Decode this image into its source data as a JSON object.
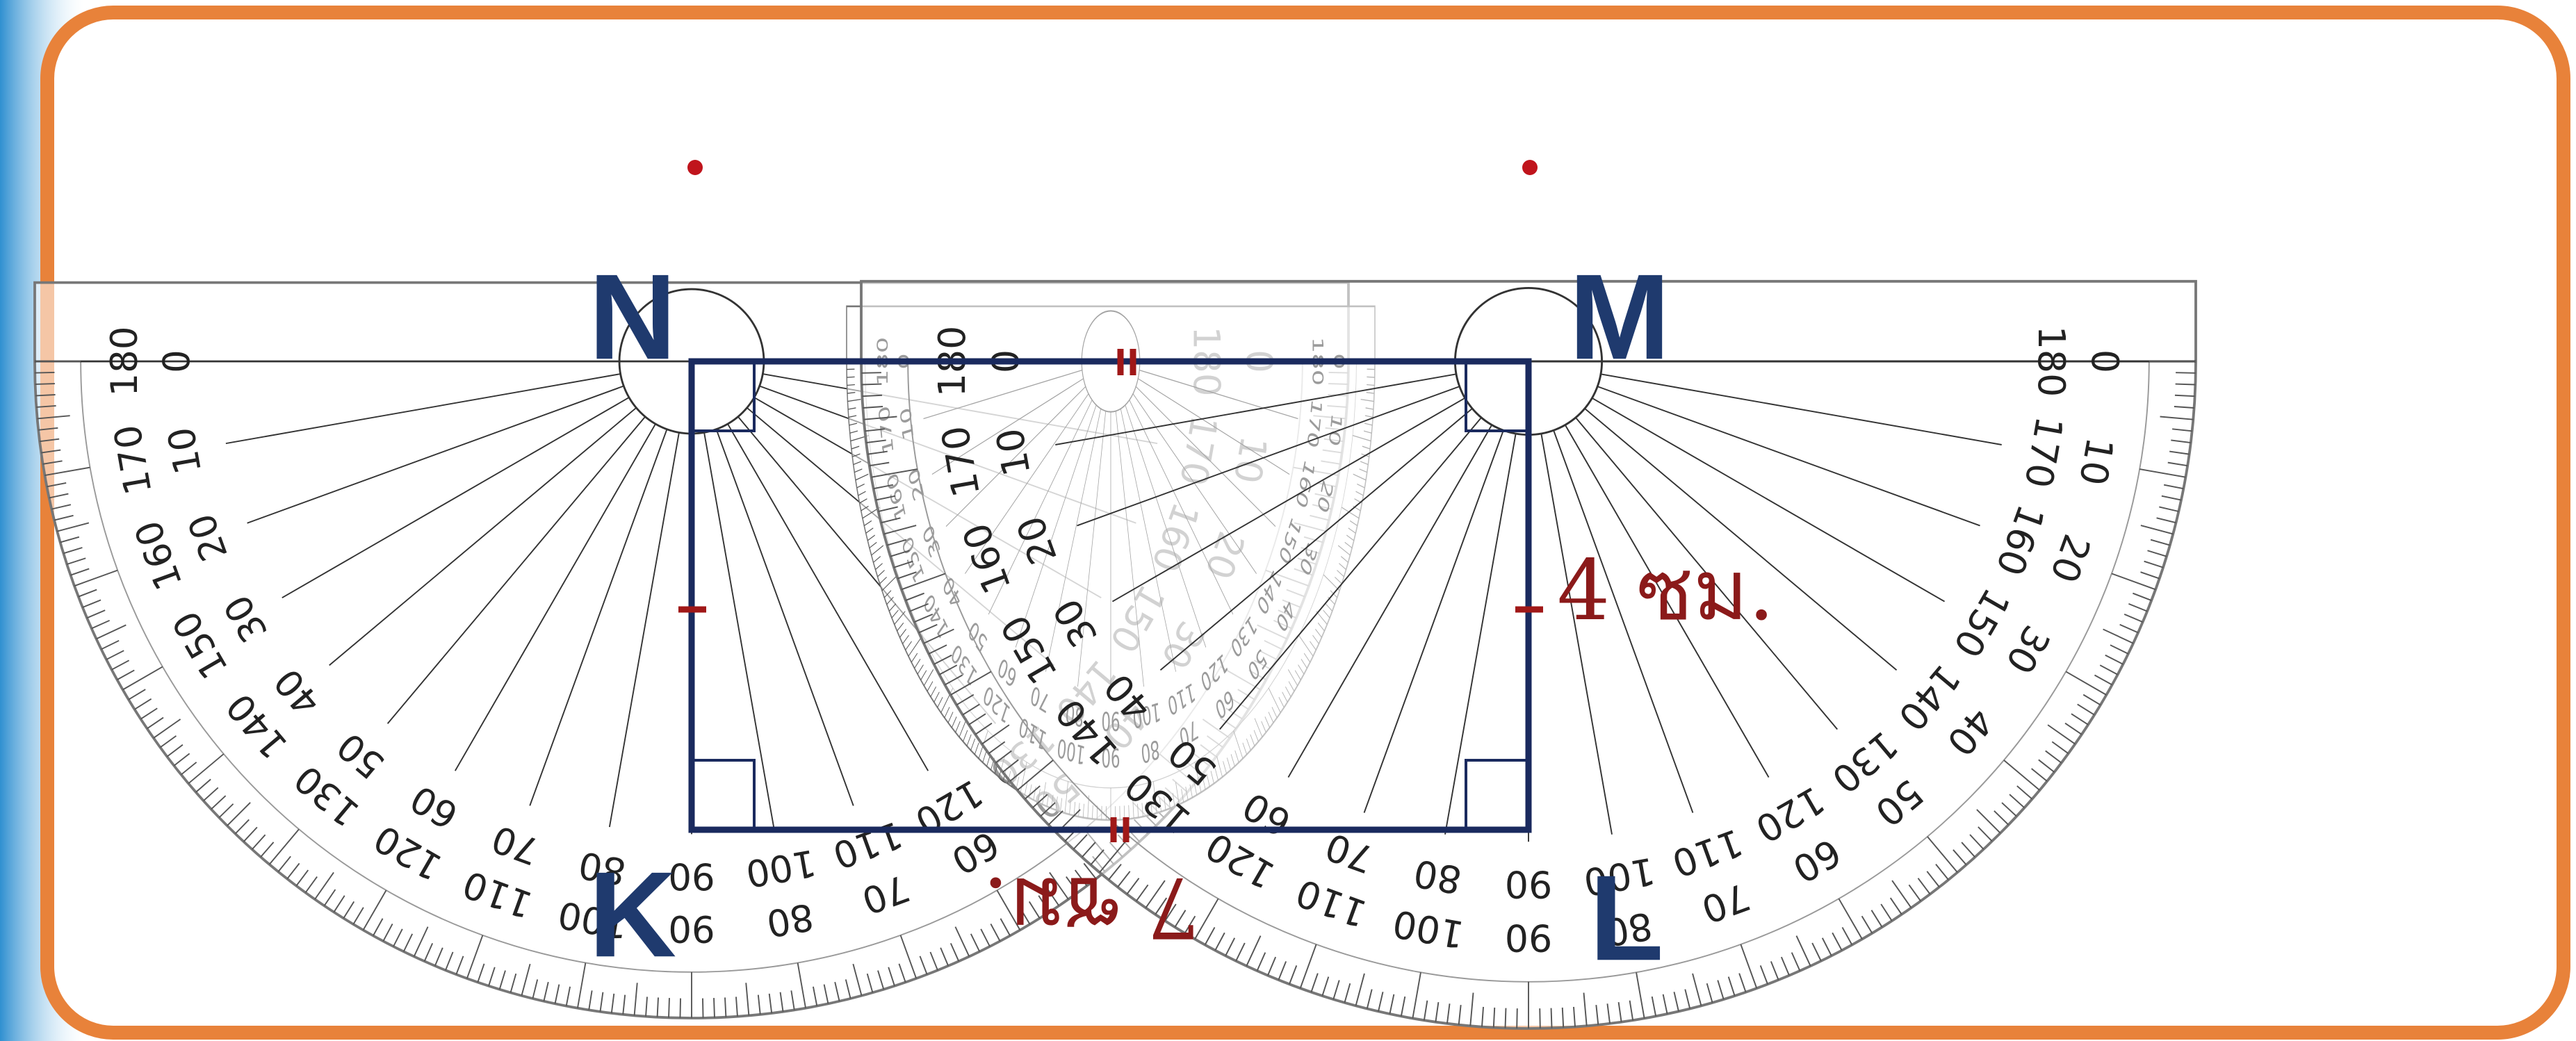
{
  "vertex_labels": {
    "N": "N",
    "M": "M",
    "K": "K",
    "L": "L"
  },
  "side_labels": {
    "right": "4 ซม.",
    "bottom": "7 ซม."
  },
  "protractor_scale": [
    0,
    10,
    20,
    30,
    40,
    50,
    60,
    70,
    80,
    90,
    100,
    110,
    120,
    130,
    140,
    150,
    160,
    170,
    180
  ]
}
